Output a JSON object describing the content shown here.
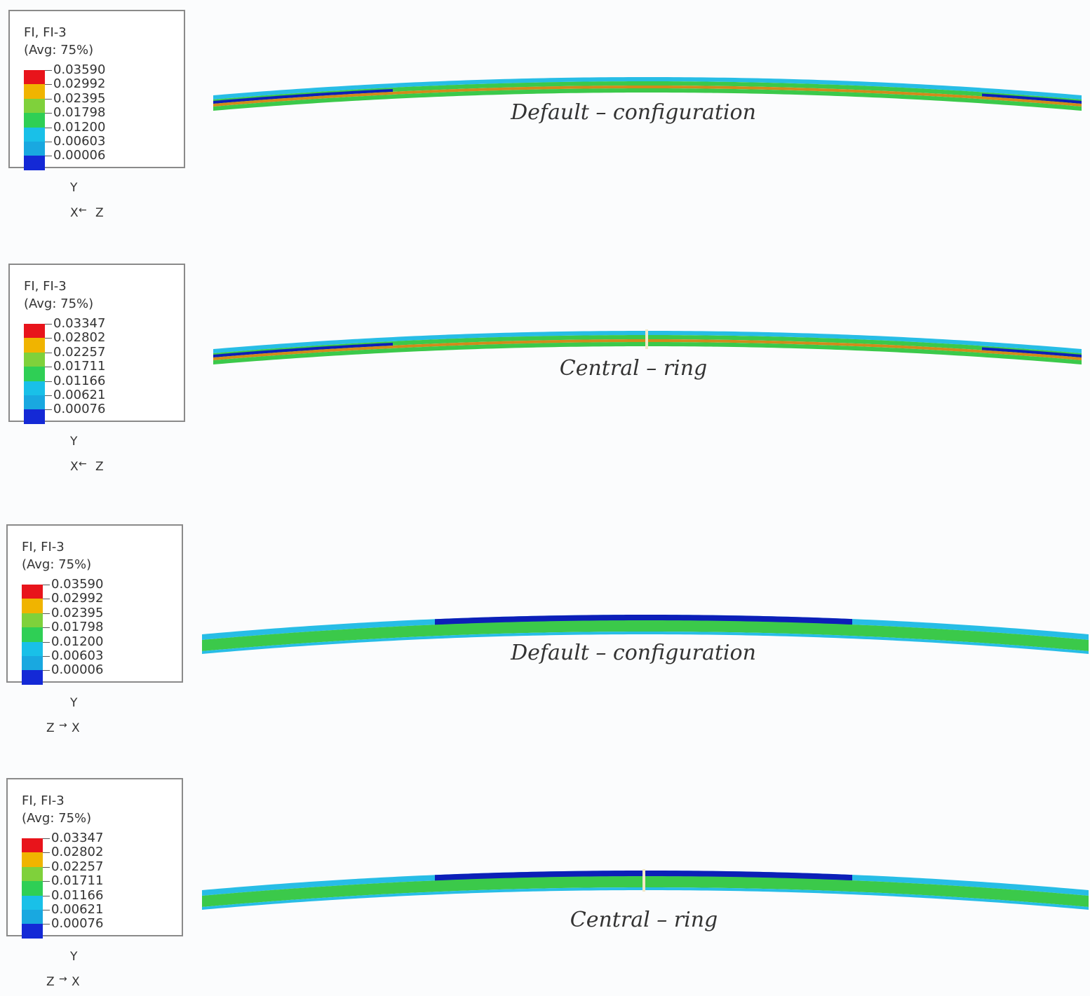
{
  "panels": [
    {
      "legend": {
        "title": "FI, FI-3",
        "avg": "(Avg: 75%)",
        "values": [
          "0.03590",
          "0.02992",
          "0.02395",
          "0.01798",
          "0.01200",
          "0.00603",
          "0.00006"
        ]
      },
      "triad": {
        "up": "Y",
        "left": "X",
        "right": "Z",
        "orientation": "x-left-z-right"
      },
      "caption": "Default – configuration",
      "view": "bottom-high-stress"
    },
    {
      "legend": {
        "title": "FI, FI-3",
        "avg": "(Avg: 75%)",
        "values": [
          "0.03347",
          "0.02802",
          "0.02257",
          "0.01711",
          "0.01166",
          "0.00621",
          "0.00076"
        ]
      },
      "triad": {
        "up": "Y",
        "left": "X",
        "right": "Z",
        "orientation": "x-left-z-right"
      },
      "caption": "Central – ring",
      "view": "bottom-high-stress-ring"
    },
    {
      "legend": {
        "title": "FI, FI-3",
        "avg": "(Avg: 75%)",
        "values": [
          "0.03590",
          "0.02992",
          "0.02395",
          "0.01798",
          "0.01200",
          "0.00603",
          "0.00006"
        ]
      },
      "triad": {
        "up": "Y",
        "left": "Z",
        "right": "X",
        "orientation": "z-left-x-right"
      },
      "caption": "Default – configuration",
      "view": "top-low-stress"
    },
    {
      "legend": {
        "title": "FI, FI-3",
        "avg": "(Avg: 75%)",
        "values": [
          "0.03347",
          "0.02802",
          "0.02257",
          "0.01711",
          "0.01166",
          "0.00621",
          "0.00076"
        ]
      },
      "triad": {
        "up": "Y",
        "left": "Z",
        "right": "X",
        "orientation": "z-left-x-right"
      },
      "caption": "Central – ring",
      "view": "top-low-stress-ring"
    }
  ],
  "colors": {
    "contour": [
      "#e8141b",
      "#f0b400",
      "#7fd13b",
      "#2fcf55",
      "#19c0e8",
      "#19a8e0",
      "#1429d6"
    ],
    "beam_green": "#3bc94a",
    "beam_dark_blue": "#0c1fb8",
    "beam_cyan": "#27bde6",
    "beam_orange": "#d28a1a"
  }
}
